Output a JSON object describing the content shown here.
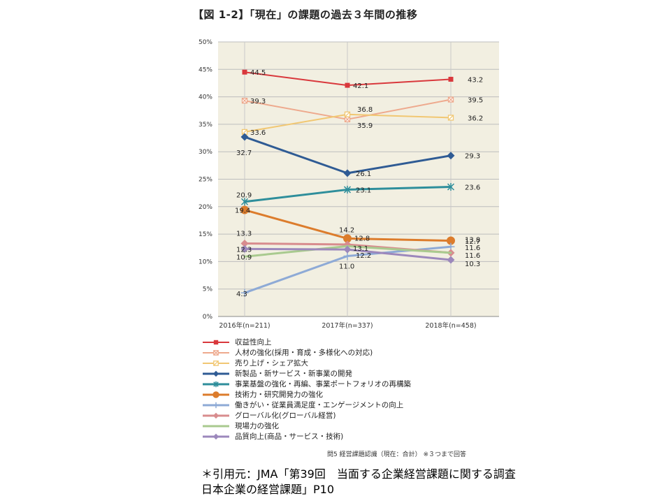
{
  "figure": {
    "title": "【図 1-2】「現在」の課題の過去３年間の推移",
    "note": "問5 経営課題認識（現在：合計） ※３つまで回答",
    "citation": "＊引用元：JMA「第39回　当面する企業経営課題に関する調査　日本企業の経営課題」P10"
  },
  "chart_data": {
    "type": "line",
    "title": "【図 1-2】「現在」の課題の過去３年間の推移",
    "xlabel": "",
    "ylabel": "",
    "categories": [
      "2016年(n=211)",
      "2017年(n=337)",
      "2018年(n=458)"
    ],
    "y_ticks": [
      "0%",
      "5%",
      "10%",
      "15%",
      "20%",
      "25%",
      "30%",
      "35%",
      "40%",
      "45%",
      "50%"
    ],
    "ylim": [
      0,
      50
    ],
    "grid": true,
    "legend_position": "bottom",
    "series": [
      {
        "name": "収益性向上",
        "values": [
          44.5,
          42.1,
          43.2
        ],
        "color": "#d9383c",
        "marker": "square",
        "width": 2
      },
      {
        "name": "人材の強化(採用・育成・多様化への対応)",
        "values": [
          39.3,
          35.9,
          39.5
        ],
        "color": "#eea98d",
        "marker": "box-x",
        "width": 2
      },
      {
        "name": "売り上げ・シェア拡大",
        "values": [
          33.6,
          36.8,
          36.2
        ],
        "color": "#f1c772",
        "marker": "box-slash",
        "width": 2
      },
      {
        "name": "新製品・新サービス・新事業の開発",
        "values": [
          32.7,
          26.1,
          29.3
        ],
        "color": "#2f5b94",
        "marker": "diamond",
        "width": 3
      },
      {
        "name": "事業基盤の強化・再編、事業ポートフォリオの再構築",
        "values": [
          20.9,
          23.1,
          23.6
        ],
        "color": "#2e8e9b",
        "marker": "asterisk",
        "width": 3
      },
      {
        "name": "技術力・研究開発力の強化",
        "values": [
          19.4,
          14.2,
          13.8
        ],
        "color": "#dc7c2c",
        "marker": "circle",
        "width": 3
      },
      {
        "name": "働きがい・従業員満足度・エンゲージメントの向上",
        "values": [
          4.3,
          11.0,
          12.7
        ],
        "color": "#8eaad6",
        "marker": "plus",
        "width": 3
      },
      {
        "name": "グローバル化(グローバル経営)",
        "values": [
          13.3,
          13.1,
          11.6
        ],
        "color": "#d88c8e",
        "marker": "diamond",
        "width": 3
      },
      {
        "name": "現場力の強化",
        "values": [
          10.9,
          12.8,
          11.6
        ],
        "color": "#a9ca8f",
        "marker": "none",
        "width": 3
      },
      {
        "name": "品質向上(商品・サービス・技術)",
        "values": [
          12.3,
          12.2,
          10.3
        ],
        "color": "#9c88bc",
        "marker": "diamond",
        "width": 3
      }
    ],
    "data_labels": [
      [
        "44.5",
        "42.1",
        "43.2"
      ],
      [
        "39.3",
        "35.9",
        "39.5"
      ],
      [
        "33.6",
        "36.8",
        "36.2"
      ],
      [
        "32.7",
        "26.1",
        "29.3"
      ],
      [
        "20.9",
        "23.1",
        "23.6"
      ],
      [
        "19.4",
        "14.2",
        "13.8"
      ],
      [
        "4.3",
        "11.0",
        "12.7"
      ],
      [
        "13.3",
        "13.1",
        "11.6"
      ],
      [
        "10.9",
        "12.8",
        "11.6"
      ],
      [
        "12.3",
        "12.2",
        "10.3"
      ]
    ]
  }
}
